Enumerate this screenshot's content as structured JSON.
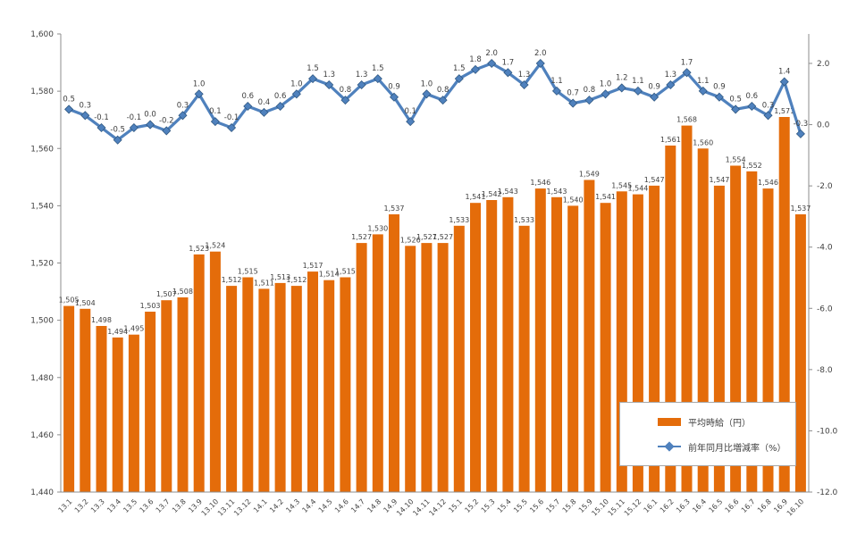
{
  "chart_data": {
    "type": "combo-bar-line",
    "title": "",
    "categories": [
      "13.1",
      "13.2",
      "13.3",
      "13.4",
      "13.5",
      "13.6",
      "13.7",
      "13.8",
      "13.9",
      "13.10",
      "13.11",
      "13.12",
      "14.1",
      "14.2",
      "14.3",
      "14.4",
      "14.5",
      "14.6",
      "14.7",
      "14.8",
      "14.9",
      "14.10",
      "14.11",
      "14.12",
      "15.1",
      "15.2",
      "15.3",
      "15.4",
      "15.5",
      "15.6",
      "15.7",
      "15.8",
      "15.9",
      "15.10",
      "15.11",
      "15.12",
      "16.1",
      "16.2",
      "16.3",
      "16.4",
      "16.5",
      "16.6",
      "16.7",
      "16.8",
      "16.9",
      "16.10"
    ],
    "series": [
      {
        "name": "平均時給（円）",
        "type": "bar",
        "axis": "left",
        "color": "#E46C0A",
        "values": [
          1505,
          1504,
          1498,
          1494,
          1495,
          1503,
          1507,
          1508,
          1523,
          1524,
          1512,
          1515,
          1511,
          1513,
          1512,
          1517,
          1514,
          1515,
          1527,
          1530,
          1537,
          1526,
          1527,
          1527,
          1533,
          1541,
          1542,
          1543,
          1533,
          1546,
          1543,
          1540,
          1549,
          1541,
          1545,
          1544,
          1547,
          1561,
          1568,
          1560,
          1547,
          1554,
          1552,
          1546,
          1571,
          1537
        ]
      },
      {
        "name": "前年同月比増減率（%）",
        "type": "line",
        "axis": "right",
        "color": "#4F81BD",
        "marker": "diamond",
        "values": [
          0.5,
          0.3,
          -0.1,
          -0.5,
          -0.1,
          0.0,
          -0.2,
          0.3,
          1.0,
          0.1,
          -0.1,
          0.6,
          0.4,
          0.6,
          1.0,
          1.5,
          1.3,
          0.8,
          1.3,
          1.5,
          0.9,
          0.1,
          1.0,
          0.8,
          1.5,
          1.8,
          2.0,
          1.7,
          1.3,
          2.0,
          1.1,
          0.7,
          0.8,
          1.0,
          1.2,
          1.1,
          0.9,
          1.3,
          1.7,
          1.1,
          0.9,
          0.5,
          0.6,
          0.3,
          1.4,
          -0.3
        ]
      }
    ],
    "left_axis": {
      "min": 1440,
      "max": 1600,
      "step": 20,
      "tick_labels": [
        "1,600",
        "1,580",
        "1,560",
        "1,540",
        "1,520",
        "1,500",
        "1,480",
        "1,460",
        "1,440"
      ]
    },
    "right_axis": {
      "min": -12.0,
      "max": 2.0,
      "step": 2.0,
      "tick_labels": [
        "2.0",
        "0.0",
        "-2.0",
        "-4.0",
        "-6.0",
        "-8.0",
        "-10.0",
        "-12.0"
      ]
    },
    "grid": false,
    "data_labels": true,
    "legend_position": "inside-bottom-right"
  },
  "legend": {
    "items": [
      {
        "label": "平均時給（円）",
        "swatch": "bar"
      },
      {
        "label": "前年同月比増減率（%）",
        "swatch": "line-diamond"
      }
    ]
  },
  "colors": {
    "bar": "#E46C0A",
    "line": "#4F81BD",
    "marker_edge": "#2E567F",
    "axis": "#8C8C8C",
    "label": "#3F3F3F",
    "background": "#FFFFFF",
    "legend_border": "#A6A6A6"
  }
}
